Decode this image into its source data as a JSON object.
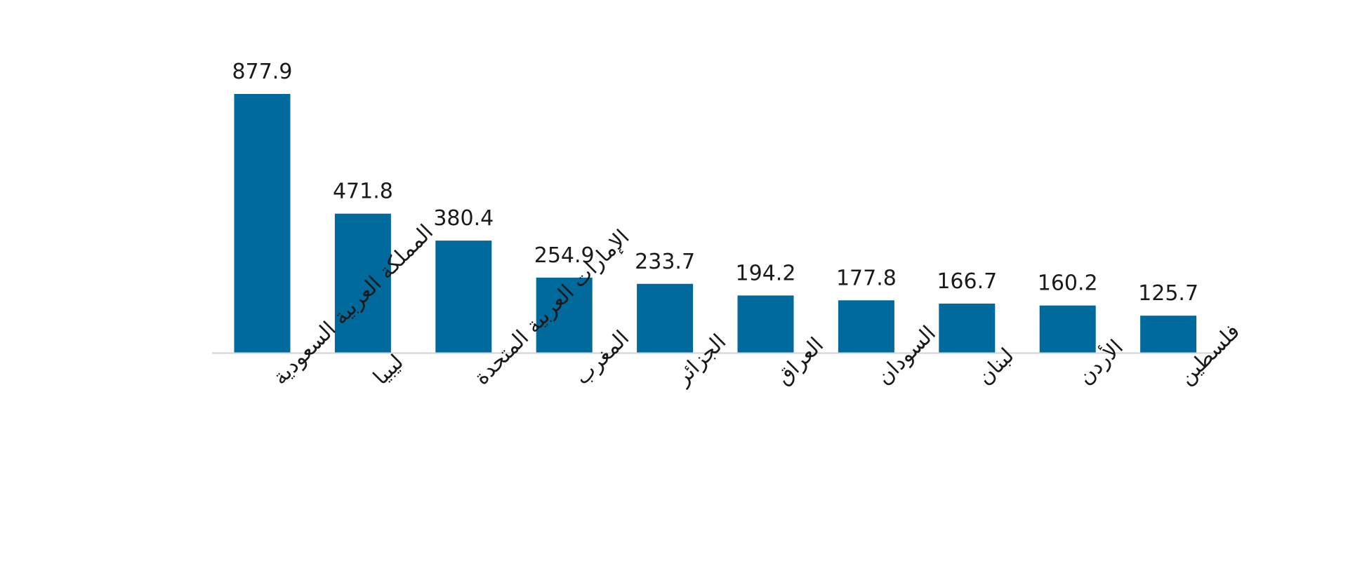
{
  "chart_data": {
    "type": "bar",
    "categories": [
      "المملكة العربية السعودية",
      "ليبيا",
      "الإمارات العربية المتحدة",
      "المغرب",
      "الجزائر",
      "العراق",
      "السودان",
      "لبنان",
      "الأردن",
      "فلسطين"
    ],
    "values": [
      877.9,
      471.8,
      380.4,
      254.9,
      233.7,
      194.2,
      177.8,
      166.7,
      160.2,
      125.7
    ],
    "value_labels": [
      "877.9",
      "471.8",
      "380.4",
      "254.9",
      "233.7",
      "194.2",
      "177.8",
      "166.7",
      "160.2",
      "125.7"
    ],
    "title": "",
    "xlabel": "",
    "ylabel": "",
    "ylim": [
      0,
      877.9
    ],
    "grid": false,
    "legend": "none",
    "colors": {
      "bar": "#006a9c",
      "axis": "#cfd3d6",
      "text": "#1a1a1a"
    }
  }
}
